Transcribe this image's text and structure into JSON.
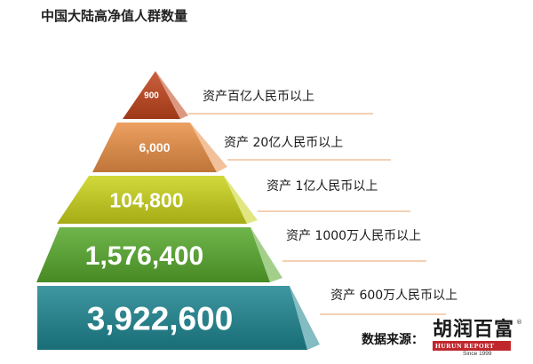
{
  "page": {
    "title": "中国大陆高净值人群数量"
  },
  "chart_data": {
    "type": "pyramid",
    "title": "中国大陆高净值人群数量",
    "tiers": [
      {
        "value_label": "900",
        "value": 900,
        "label": "资产百亿人民币以上",
        "color": "#c1441c",
        "label_color": "#ffffff"
      },
      {
        "value_label": "6,000",
        "value": 6000,
        "label": "资产 20亿人民币以上",
        "color": "#e98f45",
        "label_color": "#ffffff"
      },
      {
        "value_label": "104,800",
        "value": 104800,
        "label": "资产 1亿人民币以上",
        "color": "#c9d21a",
        "label_color": "#ffffff"
      },
      {
        "value_label": "1,576,400",
        "value": 1576400,
        "label": "资产 1000万人民币以上",
        "color": "#57a82c",
        "label_color": "#ffffff"
      },
      {
        "value_label": "3,922,600",
        "value": 3922600,
        "label": "资产 600万人民币以上",
        "color": "#1d8590",
        "label_color": "#ffffff"
      }
    ]
  },
  "source": {
    "label": "数据来源：",
    "logo_cn": "胡润百富",
    "logo_en": "HURUN REPORT",
    "logo_since": "Since 1999",
    "logo_reg": "®",
    "brand_color": "#c0272d"
  }
}
